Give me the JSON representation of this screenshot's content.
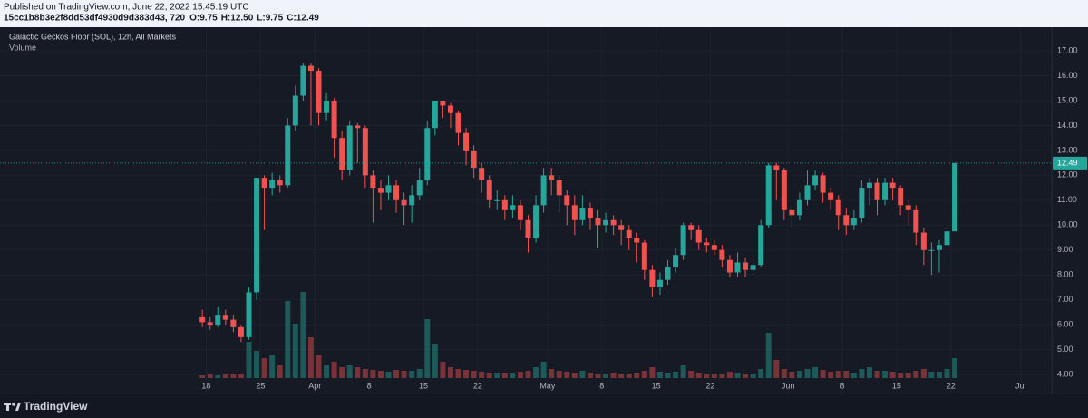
{
  "header": {
    "published": "Published on TradingView.com, June 22, 2022 15:45:19 UTC",
    "symbol": "15cc1b8b3e2f8dd53df4930d9d383d43, 720",
    "ohlc": [
      "O:9.75",
      "H:12.50",
      "L:9.75",
      "C:12.49"
    ]
  },
  "footer": {
    "brand": "TradingView"
  },
  "chart_data": {
    "type": "candlestick",
    "title": "Galactic Geckos Floor (SOL), 12h, All Markets",
    "up_color": "#26a69a",
    "down_color": "#ef5350",
    "volume_name": "Volume",
    "x": [
      "Mar 17",
      "Mar 18",
      "Mar 19",
      "Mar 20",
      "Mar 21",
      "Mar 22",
      "Mar 23",
      "Mar 24",
      "Mar 25",
      "Mar 26",
      "Mar 27",
      "Mar 28",
      "Mar 29",
      "Mar 30",
      "Mar 31",
      "Apr 1",
      "Apr 2",
      "Apr 3",
      "Apr 4",
      "Apr 5",
      "Apr 6",
      "Apr 7",
      "Apr 8",
      "Apr 9",
      "Apr 10",
      "Apr 11",
      "Apr 12",
      "Apr 13",
      "Apr 14",
      "Apr 15",
      "Apr 16",
      "Apr 17",
      "Apr 18",
      "Apr 19",
      "Apr 20",
      "Apr 21",
      "Apr 22",
      "Apr 23",
      "Apr 24",
      "Apr 25",
      "Apr 26",
      "Apr 27",
      "Apr 28",
      "Apr 29",
      "Apr 30",
      "May 1",
      "May 2",
      "May 3",
      "May 4",
      "May 5",
      "May 6",
      "May 7",
      "May 8",
      "May 9",
      "May 10",
      "May 11",
      "May 12",
      "May 13",
      "May 14",
      "May 15",
      "May 16",
      "May 17",
      "May 18",
      "May 19",
      "May 20",
      "May 21",
      "May 22",
      "May 23",
      "May 24",
      "May 25",
      "May 26",
      "May 27",
      "May 28",
      "May 29",
      "May 30",
      "May 31",
      "Jun 1",
      "Jun 2",
      "Jun 3",
      "Jun 4",
      "Jun 5",
      "Jun 6",
      "Jun 7",
      "Jun 8",
      "Jun 9",
      "Jun 10",
      "Jun 11",
      "Jun 12",
      "Jun 13",
      "Jun 14",
      "Jun 15",
      "Jun 16",
      "Jun 17",
      "Jun 18",
      "Jun 19",
      "Jun 20",
      "Jun 21",
      "Jun 22"
    ],
    "open": [
      6.3,
      6.1,
      6.0,
      6.4,
      6.2,
      5.9,
      5.5,
      7.3,
      11.9,
      11.5,
      11.8,
      11.6,
      14.0,
      15.2,
      16.4,
      16.2,
      14.5,
      15.0,
      13.5,
      12.2,
      14.0,
      13.9,
      12.0,
      11.5,
      11.3,
      11.6,
      11.0,
      10.8,
      11.2,
      11.8,
      13.9,
      15.0,
      14.8,
      14.5,
      13.7,
      13.0,
      12.3,
      11.8,
      11.0,
      11.0,
      10.6,
      10.8,
      10.2,
      9.5,
      10.8,
      12.0,
      11.8,
      11.2,
      10.8,
      10.2,
      10.7,
      10.3,
      10.0,
      10.2,
      10.0,
      9.8,
      9.5,
      9.3,
      8.2,
      7.5,
      7.8,
      8.3,
      8.8,
      10.0,
      9.8,
      9.3,
      9.2,
      9.0,
      8.6,
      8.1,
      8.5,
      8.2,
      8.4,
      10.0,
      12.4,
      12.2,
      10.6,
      10.4,
      11.0,
      11.6,
      12.0,
      11.3,
      11.0,
      10.4,
      10.0,
      10.3,
      11.5,
      11.7,
      11.0,
      11.7,
      11.5,
      10.8,
      10.6,
      9.7,
      9.0,
      9.0,
      9.2,
      9.75
    ],
    "high": [
      6.6,
      6.3,
      6.7,
      6.6,
      6.4,
      6.0,
      7.5,
      11.9,
      12.0,
      12.1,
      12.0,
      14.3,
      15.6,
      16.5,
      16.5,
      16.3,
      15.3,
      15.1,
      13.8,
      14.2,
      14.1,
      14.0,
      12.2,
      11.8,
      12.0,
      11.8,
      11.3,
      11.6,
      12.3,
      14.2,
      15.0,
      15.0,
      14.9,
      14.6,
      13.9,
      13.2,
      12.5,
      12.0,
      11.4,
      11.2,
      11.2,
      11.0,
      10.4,
      11.2,
      12.3,
      12.3,
      12.0,
      11.4,
      11.2,
      11.2,
      10.9,
      10.6,
      10.5,
      10.4,
      10.2,
      10.0,
      9.7,
      9.4,
      8.4,
      8.1,
      8.6,
      9.1,
      10.1,
      10.1,
      10.0,
      9.5,
      9.4,
      9.2,
      8.8,
      8.9,
      8.7,
      8.7,
      10.2,
      12.5,
      12.5,
      12.3,
      10.8,
      11.3,
      12.2,
      12.2,
      12.1,
      11.5,
      11.2,
      10.7,
      10.6,
      11.8,
      11.9,
      11.9,
      11.9,
      11.9,
      11.6,
      11.0,
      10.8,
      9.9,
      9.3,
      9.4,
      9.8,
      12.5
    ],
    "low": [
      5.9,
      5.8,
      5.9,
      6.0,
      5.7,
      5.3,
      5.4,
      7.0,
      9.8,
      11.2,
      11.3,
      11.5,
      13.8,
      15.0,
      14.0,
      14.0,
      14.2,
      12.7,
      11.8,
      12.0,
      12.5,
      11.5,
      10.1,
      10.6,
      11.0,
      10.5,
      10.0,
      10.1,
      11.0,
      11.6,
      13.6,
      14.3,
      13.9,
      13.2,
      12.4,
      11.9,
      11.3,
      10.7,
      10.6,
      10.2,
      10.3,
      9.8,
      8.9,
      9.3,
      10.5,
      11.2,
      10.5,
      10.0,
      9.6,
      10.0,
      9.8,
      9.1,
      9.7,
      9.6,
      9.2,
      9.0,
      8.5,
      7.8,
      7.1,
      7.2,
      7.6,
      8.1,
      8.6,
      9.4,
      9.0,
      8.9,
      8.8,
      8.3,
      7.9,
      7.9,
      7.9,
      8.0,
      8.3,
      9.9,
      11.0,
      10.2,
      9.9,
      10.2,
      10.8,
      11.4,
      10.9,
      10.6,
      9.8,
      9.6,
      9.8,
      10.1,
      10.8,
      10.4,
      10.8,
      11.0,
      10.4,
      10.0,
      9.2,
      8.4,
      8.0,
      8.1,
      8.7,
      9.75
    ],
    "close": [
      6.1,
      6.0,
      6.4,
      6.2,
      5.9,
      5.5,
      7.3,
      11.9,
      11.5,
      11.8,
      11.6,
      14.0,
      15.2,
      16.4,
      16.2,
      14.5,
      15.0,
      13.5,
      12.2,
      14.0,
      13.9,
      12.0,
      11.5,
      11.3,
      11.6,
      11.0,
      10.8,
      11.2,
      11.8,
      13.9,
      15.0,
      14.8,
      14.5,
      13.7,
      13.0,
      12.3,
      11.8,
      11.0,
      11.0,
      10.6,
      10.8,
      10.2,
      9.5,
      10.8,
      12.0,
      11.8,
      11.2,
      10.8,
      10.2,
      10.7,
      10.3,
      10.0,
      10.2,
      10.0,
      9.8,
      9.5,
      9.3,
      8.2,
      7.5,
      7.8,
      8.3,
      8.8,
      10.0,
      9.8,
      9.3,
      9.2,
      9.0,
      8.6,
      8.1,
      8.5,
      8.2,
      8.4,
      10.0,
      12.4,
      12.2,
      10.6,
      10.4,
      11.0,
      11.6,
      12.0,
      11.3,
      11.0,
      10.4,
      10.0,
      10.3,
      11.5,
      11.7,
      11.0,
      11.7,
      11.5,
      10.8,
      10.6,
      9.7,
      9.0,
      9.0,
      9.2,
      9.75,
      12.49
    ],
    "volume": [
      3,
      4,
      3,
      4,
      4,
      5,
      40,
      30,
      22,
      25,
      15,
      85,
      60,
      95,
      45,
      25,
      15,
      18,
      12,
      14,
      12,
      10,
      9,
      8,
      7,
      9,
      8,
      8,
      10,
      65,
      38,
      18,
      12,
      10,
      9,
      8,
      7,
      6,
      6,
      6,
      6,
      7,
      8,
      12,
      18,
      10,
      8,
      7,
      6,
      8,
      6,
      5,
      5,
      6,
      5,
      5,
      6,
      8,
      12,
      7,
      6,
      7,
      14,
      8,
      6,
      5,
      5,
      5,
      7,
      6,
      5,
      5,
      10,
      50,
      20,
      10,
      7,
      8,
      10,
      12,
      9,
      7,
      8,
      8,
      6,
      10,
      12,
      8,
      8,
      7,
      6,
      6,
      8,
      10,
      7,
      7,
      10,
      22
    ],
    "last_price": 12.49,
    "xlim": [
      "Feb 20",
      "Jul 5"
    ],
    "xticks": [
      {
        "value": "Mar 18",
        "label": "18"
      },
      {
        "value": "Mar 25",
        "label": "25"
      },
      {
        "value": "Apr 1",
        "label": "Apr"
      },
      {
        "value": "Apr 8",
        "label": "8"
      },
      {
        "value": "Apr 15",
        "label": "15"
      },
      {
        "value": "Apr 22",
        "label": "22"
      },
      {
        "value": "May 1",
        "label": "May"
      },
      {
        "value": "May 8",
        "label": "8"
      },
      {
        "value": "May 15",
        "label": "15"
      },
      {
        "value": "May 22",
        "label": "22"
      },
      {
        "value": "Jun 1",
        "label": "Jun"
      },
      {
        "value": "Jun 8",
        "label": "8"
      },
      {
        "value": "Jun 15",
        "label": "15"
      },
      {
        "value": "Jun 22",
        "label": "22"
      },
      {
        "value": "Jul 1",
        "label": "Jul"
      }
    ],
    "ylim": [
      3.2,
      17.95
    ],
    "yticks": [
      {
        "value": 4,
        "label": "4.00"
      },
      {
        "value": 5,
        "label": "5.00"
      },
      {
        "value": 6,
        "label": "6.00"
      },
      {
        "value": 7,
        "label": "7.00"
      },
      {
        "value": 8,
        "label": "8.00"
      },
      {
        "value": 9,
        "label": "9.00"
      },
      {
        "value": 10,
        "label": "10.00"
      },
      {
        "value": 11,
        "label": "11.00"
      },
      {
        "value": 12,
        "label": "12.00"
      },
      {
        "value": 13,
        "label": "13.00"
      },
      {
        "value": 14,
        "label": "14.00"
      },
      {
        "value": 15,
        "label": "15.00"
      },
      {
        "value": 16,
        "label": "16.00"
      },
      {
        "value": 17,
        "label": "17.00"
      }
    ],
    "grid": true
  }
}
